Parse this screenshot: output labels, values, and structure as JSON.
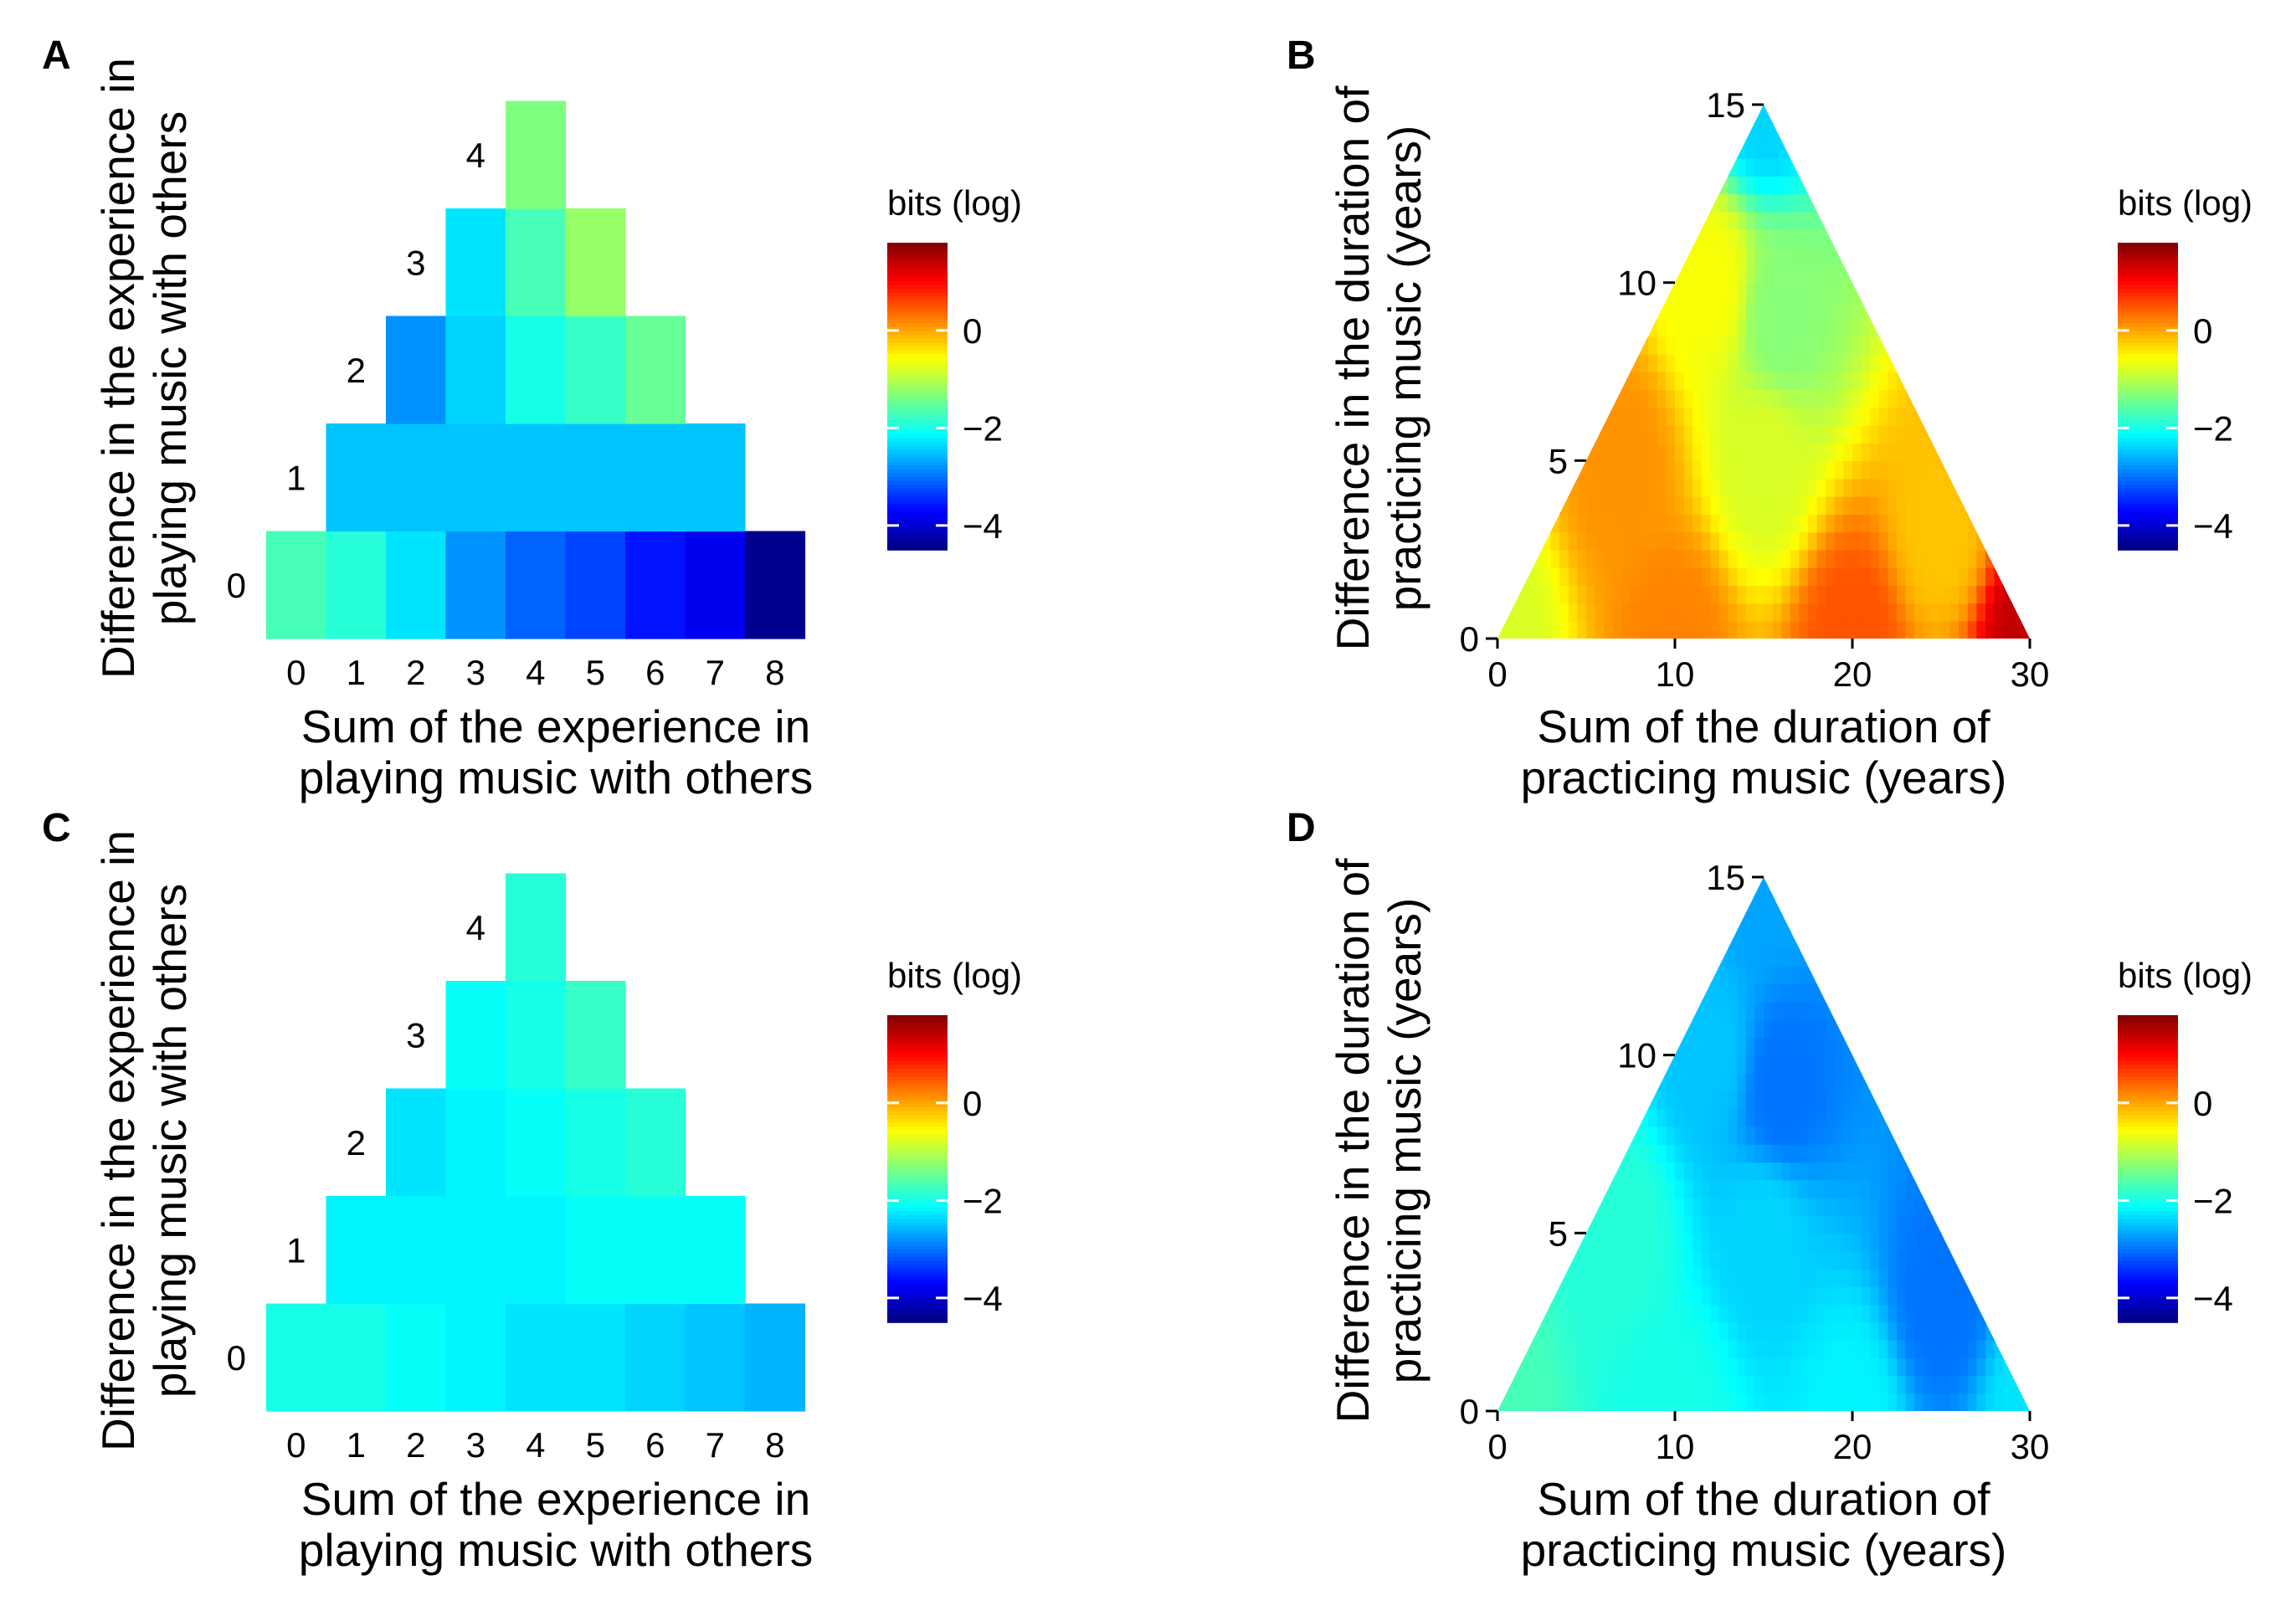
{
  "colorbar": {
    "title": "bits (log)",
    "range": [
      -4.5,
      1.8
    ],
    "ticks": [
      0,
      -2,
      -4
    ],
    "tick_labels": [
      "0",
      "−2",
      "−4"
    ],
    "colormap": [
      "#00007f",
      "#0000ff",
      "#007fff",
      "#00ffff",
      "#7fff7f",
      "#ffff00",
      "#ff7f00",
      "#ff0000",
      "#7f0000"
    ]
  },
  "chart_data": [
    {
      "panel": "A",
      "type": "heatmap",
      "xlabel_lines": [
        "Sum of the experience in",
        "playing music with others"
      ],
      "ylabel_lines": [
        "Difference in the experience in",
        "playing music with others"
      ],
      "x_ticks": [
        "0",
        "1",
        "2",
        "3",
        "4",
        "5",
        "6",
        "7",
        "8"
      ],
      "rows": [
        {
          "diff": 0,
          "label": "0",
          "cells": [
            {
              "sum": 0,
              "value": -1.7
            },
            {
              "sum": 1,
              "value": -1.9
            },
            {
              "sum": 2,
              "value": -2.3
            },
            {
              "sum": 3,
              "value": -2.8
            },
            {
              "sum": 4,
              "value": -3.1
            },
            {
              "sum": 5,
              "value": -3.3
            },
            {
              "sum": 6,
              "value": -3.6
            },
            {
              "sum": 7,
              "value": -3.8
            },
            {
              "sum": 8,
              "value": -4.4
            }
          ]
        },
        {
          "diff": 1,
          "label": "1",
          "cells": [
            {
              "sum": 1,
              "value": -2.5
            },
            {
              "sum": 2,
              "value": -2.5
            },
            {
              "sum": 3,
              "value": -2.5
            },
            {
              "sum": 4,
              "value": -2.5
            },
            {
              "sum": 5,
              "value": -2.5
            },
            {
              "sum": 6,
              "value": -2.5
            },
            {
              "sum": 7,
              "value": -2.5
            }
          ]
        },
        {
          "diff": 2,
          "label": "2",
          "cells": [
            {
              "sum": 2,
              "value": -2.8
            },
            {
              "sum": 3,
              "value": -2.4
            },
            {
              "sum": 4,
              "value": -2.0
            },
            {
              "sum": 5,
              "value": -1.8
            },
            {
              "sum": 6,
              "value": -1.5
            }
          ]
        },
        {
          "diff": 3,
          "label": "3",
          "cells": [
            {
              "sum": 3,
              "value": -2.3
            },
            {
              "sum": 4,
              "value": -1.7
            },
            {
              "sum": 5,
              "value": -1.2
            }
          ]
        },
        {
          "diff": 4,
          "label": "4",
          "cells": [
            {
              "sum": 4,
              "value": -1.35
            }
          ]
        }
      ]
    },
    {
      "panel": "B",
      "type": "heatmap",
      "shape": "triangle",
      "xlabel_lines": [
        "Sum of the duration of",
        "practicing music (years)"
      ],
      "ylabel_lines": [
        "Difference in the duration of",
        "practicing music (years)"
      ],
      "x_range": [
        0,
        30
      ],
      "y_range": [
        0,
        15
      ],
      "x_ticks": [
        "0",
        "10",
        "20",
        "30"
      ],
      "y_ticks": [
        "0",
        "5",
        "10",
        "15"
      ],
      "color_field": [
        {
          "x": 0,
          "y": 0,
          "value": -0.8
        },
        {
          "x": 10,
          "y": 0,
          "value": 0.2
        },
        {
          "x": 20,
          "y": 0,
          "value": 0.5
        },
        {
          "x": 30,
          "y": 0,
          "value": 1.4
        },
        {
          "x": 7,
          "y": 5,
          "value": 0.1
        },
        {
          "x": 15,
          "y": 5,
          "value": -0.8
        },
        {
          "x": 25,
          "y": 3,
          "value": -0.2
        },
        {
          "x": 12,
          "y": 10,
          "value": -0.6
        },
        {
          "x": 16,
          "y": 9,
          "value": -1.3
        },
        {
          "x": 15,
          "y": 15,
          "value": -2.4
        }
      ]
    },
    {
      "panel": "C",
      "type": "heatmap",
      "xlabel_lines": [
        "Sum of the experience in",
        "playing music with others"
      ],
      "ylabel_lines": [
        "Difference in the experience in",
        "playing music with others"
      ],
      "x_ticks": [
        "0",
        "1",
        "2",
        "3",
        "4",
        "5",
        "6",
        "7",
        "8"
      ],
      "rows": [
        {
          "diff": 0,
          "label": "0",
          "cells": [
            {
              "sum": 0,
              "value": -2.0
            },
            {
              "sum": 1,
              "value": -2.0
            },
            {
              "sum": 2,
              "value": -2.1
            },
            {
              "sum": 3,
              "value": -2.2
            },
            {
              "sum": 4,
              "value": -2.3
            },
            {
              "sum": 5,
              "value": -2.3
            },
            {
              "sum": 6,
              "value": -2.4
            },
            {
              "sum": 7,
              "value": -2.5
            },
            {
              "sum": 8,
              "value": -2.6
            }
          ]
        },
        {
          "diff": 1,
          "label": "1",
          "cells": [
            {
              "sum": 1,
              "value": -2.2
            },
            {
              "sum": 2,
              "value": -2.2
            },
            {
              "sum": 3,
              "value": -2.2
            },
            {
              "sum": 4,
              "value": -2.2
            },
            {
              "sum": 5,
              "value": -2.1
            },
            {
              "sum": 6,
              "value": -2.1
            },
            {
              "sum": 7,
              "value": -2.1
            }
          ]
        },
        {
          "diff": 2,
          "label": "2",
          "cells": [
            {
              "sum": 2,
              "value": -2.3
            },
            {
              "sum": 3,
              "value": -2.2
            },
            {
              "sum": 4,
              "value": -2.1
            },
            {
              "sum": 5,
              "value": -2.0
            },
            {
              "sum": 6,
              "value": -1.9
            }
          ]
        },
        {
          "diff": 3,
          "label": "3",
          "cells": [
            {
              "sum": 3,
              "value": -2.1
            },
            {
              "sum": 4,
              "value": -2.0
            },
            {
              "sum": 5,
              "value": -1.8
            }
          ]
        },
        {
          "diff": 4,
          "label": "4",
          "cells": [
            {
              "sum": 4,
              "value": -1.9
            }
          ]
        }
      ]
    },
    {
      "panel": "D",
      "type": "heatmap",
      "shape": "triangle",
      "xlabel_lines": [
        "Sum of the duration of",
        "practicing music (years)"
      ],
      "ylabel_lines": [
        "Difference in the duration of",
        "practicing music (years)"
      ],
      "x_range": [
        0,
        30
      ],
      "y_range": [
        0,
        15
      ],
      "x_ticks": [
        "0",
        "10",
        "20",
        "30"
      ],
      "y_ticks": [
        "0",
        "5",
        "10",
        "15"
      ],
      "color_field": [
        {
          "x": 0,
          "y": 0,
          "value": -1.7
        },
        {
          "x": 10,
          "y": 0,
          "value": -2.0
        },
        {
          "x": 20,
          "y": 0,
          "value": -2.2
        },
        {
          "x": 30,
          "y": 0,
          "value": -2.3
        },
        {
          "x": 7,
          "y": 5,
          "value": -1.9
        },
        {
          "x": 15,
          "y": 5,
          "value": -2.4
        },
        {
          "x": 25,
          "y": 3,
          "value": -3.0
        },
        {
          "x": 12,
          "y": 10,
          "value": -2.5
        },
        {
          "x": 16,
          "y": 9,
          "value": -3.0
        },
        {
          "x": 15,
          "y": 15,
          "value": -2.7
        }
      ]
    }
  ]
}
